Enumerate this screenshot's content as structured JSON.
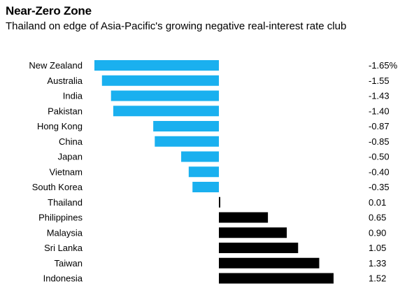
{
  "title": "Near-Zero Zone",
  "subtitle": "Thailand on edge of Asia-Pacific's growing negative real-interest rate club",
  "colors": {
    "negative": "#1ab0ef",
    "positive": "#000000"
  },
  "chart_data": {
    "type": "bar",
    "orientation": "horizontal",
    "title": "Near-Zero Zone",
    "subtitle": "Thailand on edge of Asia-Pacific's growing negative real-interest rate club",
    "categories": [
      "New Zealand",
      "Australia",
      "India",
      "Pakistan",
      "Hong Kong",
      "China",
      "Japan",
      "Vietnam",
      "South Korea",
      "Thailand",
      "Philippines",
      "Malaysia",
      "Sri Lanka",
      "Taiwan",
      "Indonesia"
    ],
    "values": [
      -1.65,
      -1.55,
      -1.43,
      -1.4,
      -0.87,
      -0.85,
      -0.5,
      -0.4,
      -0.35,
      0.01,
      0.65,
      0.9,
      1.05,
      1.33,
      1.52
    ],
    "value_labels": [
      "-1.65%",
      "-1.55",
      "-1.43",
      "-1.40",
      "-0.87",
      "-0.85",
      "-0.50",
      "-0.40",
      "-0.35",
      "0.01",
      "0.65",
      "0.90",
      "1.05",
      "1.33",
      "1.52"
    ],
    "xlim": [
      -1.65,
      1.52
    ],
    "grid": false,
    "legend": false
  }
}
